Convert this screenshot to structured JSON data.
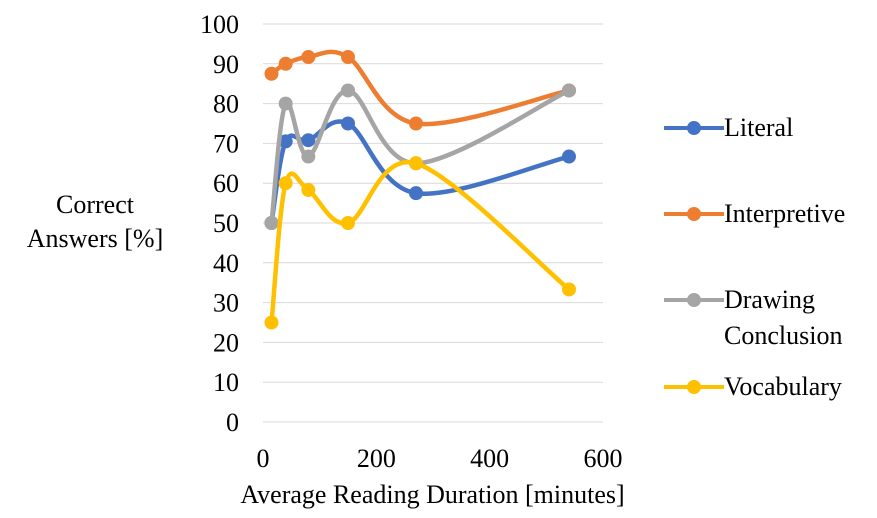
{
  "chart_data": {
    "type": "line",
    "smooth": true,
    "xlabel": "Average Reading Duration [minutes]",
    "ylabel_lines": [
      "Correct",
      "Answers [%]"
    ],
    "xlim": [
      0,
      600
    ],
    "ylim": [
      0,
      100
    ],
    "xticks": [
      0,
      200,
      400,
      600
    ],
    "yticks": [
      0,
      10,
      20,
      30,
      40,
      50,
      60,
      70,
      80,
      90,
      100
    ],
    "grid": "horizontal",
    "legend_position": "right",
    "series": [
      {
        "name": "Literal",
        "color": "#4472C4",
        "x": [
          15,
          40,
          80,
          150,
          270,
          540
        ],
        "y": [
          50,
          70.5,
          70.8,
          75,
          57.5,
          66.7
        ]
      },
      {
        "name": "Interpretive",
        "color": "#ED7D31",
        "x": [
          15,
          40,
          80,
          150,
          270,
          540
        ],
        "y": [
          87.5,
          90,
          91.7,
          91.7,
          75,
          83.3
        ]
      },
      {
        "name": "Drawing Conclusion",
        "color": "#A5A5A5",
        "x": [
          15,
          40,
          80,
          150,
          270,
          540
        ],
        "y": [
          50,
          80,
          66.7,
          83.3,
          65,
          83.3
        ]
      },
      {
        "name": "Vocabulary",
        "color": "#FFC000",
        "x": [
          15,
          40,
          80,
          150,
          270,
          540
        ],
        "y": [
          25,
          60,
          58.3,
          50,
          65,
          33.3
        ]
      }
    ]
  }
}
